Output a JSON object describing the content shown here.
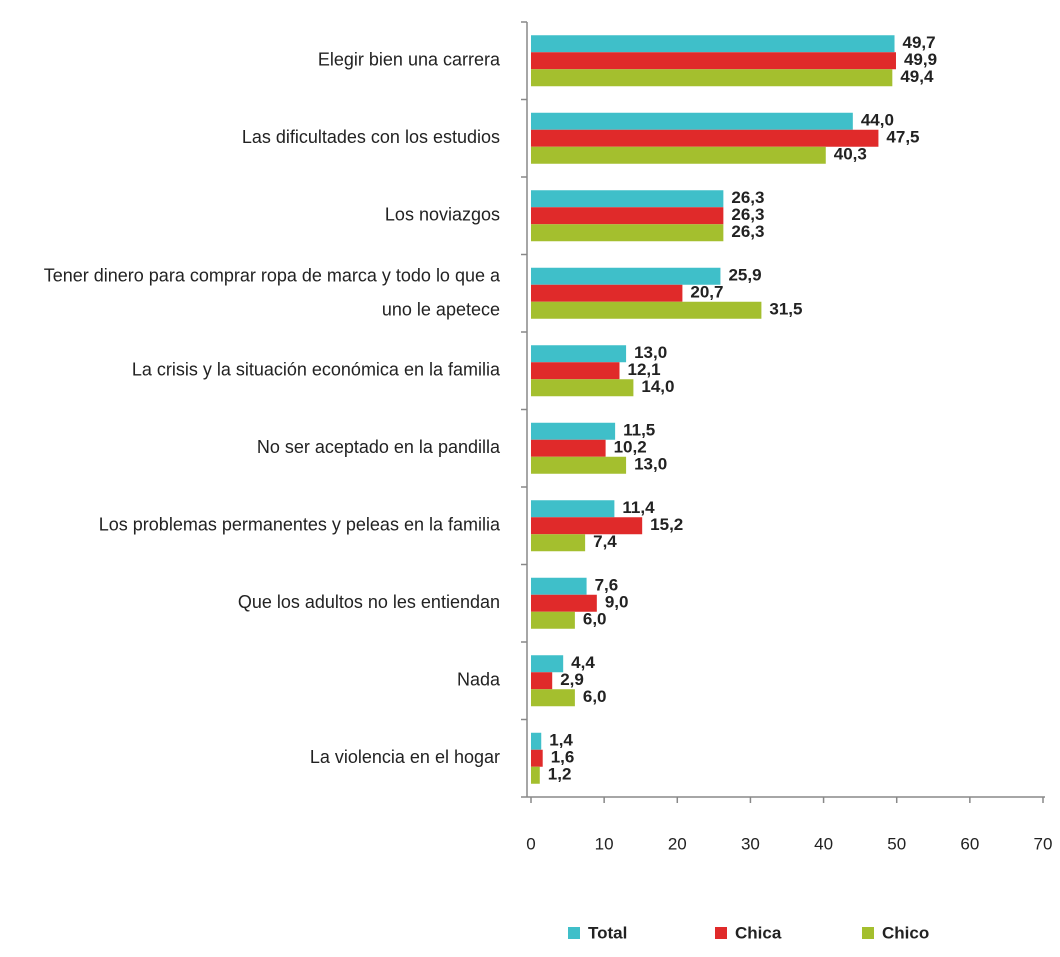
{
  "chart_data": {
    "type": "barh",
    "categories": [
      "Elegir bien una carrera",
      "Las dificultades con los estudios",
      "Los noviazgos",
      "Tener dinero para comprar ropa de marca y todo lo que a uno le apetece",
      "La crisis y la situación económica en la familia",
      "No ser aceptado en la pandilla",
      "Los problemas permanentes y peleas en la familia",
      "Que los adultos no les entiendan",
      "Nada",
      "La violencia en el hogar"
    ],
    "series": [
      {
        "name": "Total",
        "color": "#3fbfc9",
        "values": [
          49.7,
          44.0,
          26.3,
          25.9,
          13.0,
          11.5,
          11.4,
          7.6,
          4.4,
          1.4
        ],
        "value_labels": [
          "49,7",
          "44,0",
          "26,3",
          "25,9",
          "13,0",
          "11,5",
          "11,4",
          "7,6",
          "4,4",
          "1,4"
        ]
      },
      {
        "name": "Chica",
        "color": "#e02a2a",
        "values": [
          49.9,
          47.5,
          26.3,
          20.7,
          12.1,
          10.2,
          15.2,
          9.0,
          2.9,
          1.6
        ],
        "value_labels": [
          "49,9",
          "47,5",
          "26,3",
          "20,7",
          "12,1",
          "10,2",
          "15,2",
          "9,0",
          "2,9",
          "1,6"
        ]
      },
      {
        "name": "Chico",
        "color": "#a4bf2e",
        "values": [
          49.4,
          40.3,
          26.3,
          31.5,
          14.0,
          13.0,
          7.4,
          6.0,
          6.0,
          1.2
        ],
        "value_labels": [
          "49,4",
          "40,3",
          "26,3",
          "31,5",
          "14,0",
          "13,0",
          "7,4",
          "6,0",
          "6,0",
          "1,2"
        ]
      }
    ],
    "xlim": [
      0,
      70
    ],
    "xticks": [
      0,
      10,
      20,
      30,
      40,
      50,
      60,
      70
    ],
    "legend": "bottom"
  }
}
